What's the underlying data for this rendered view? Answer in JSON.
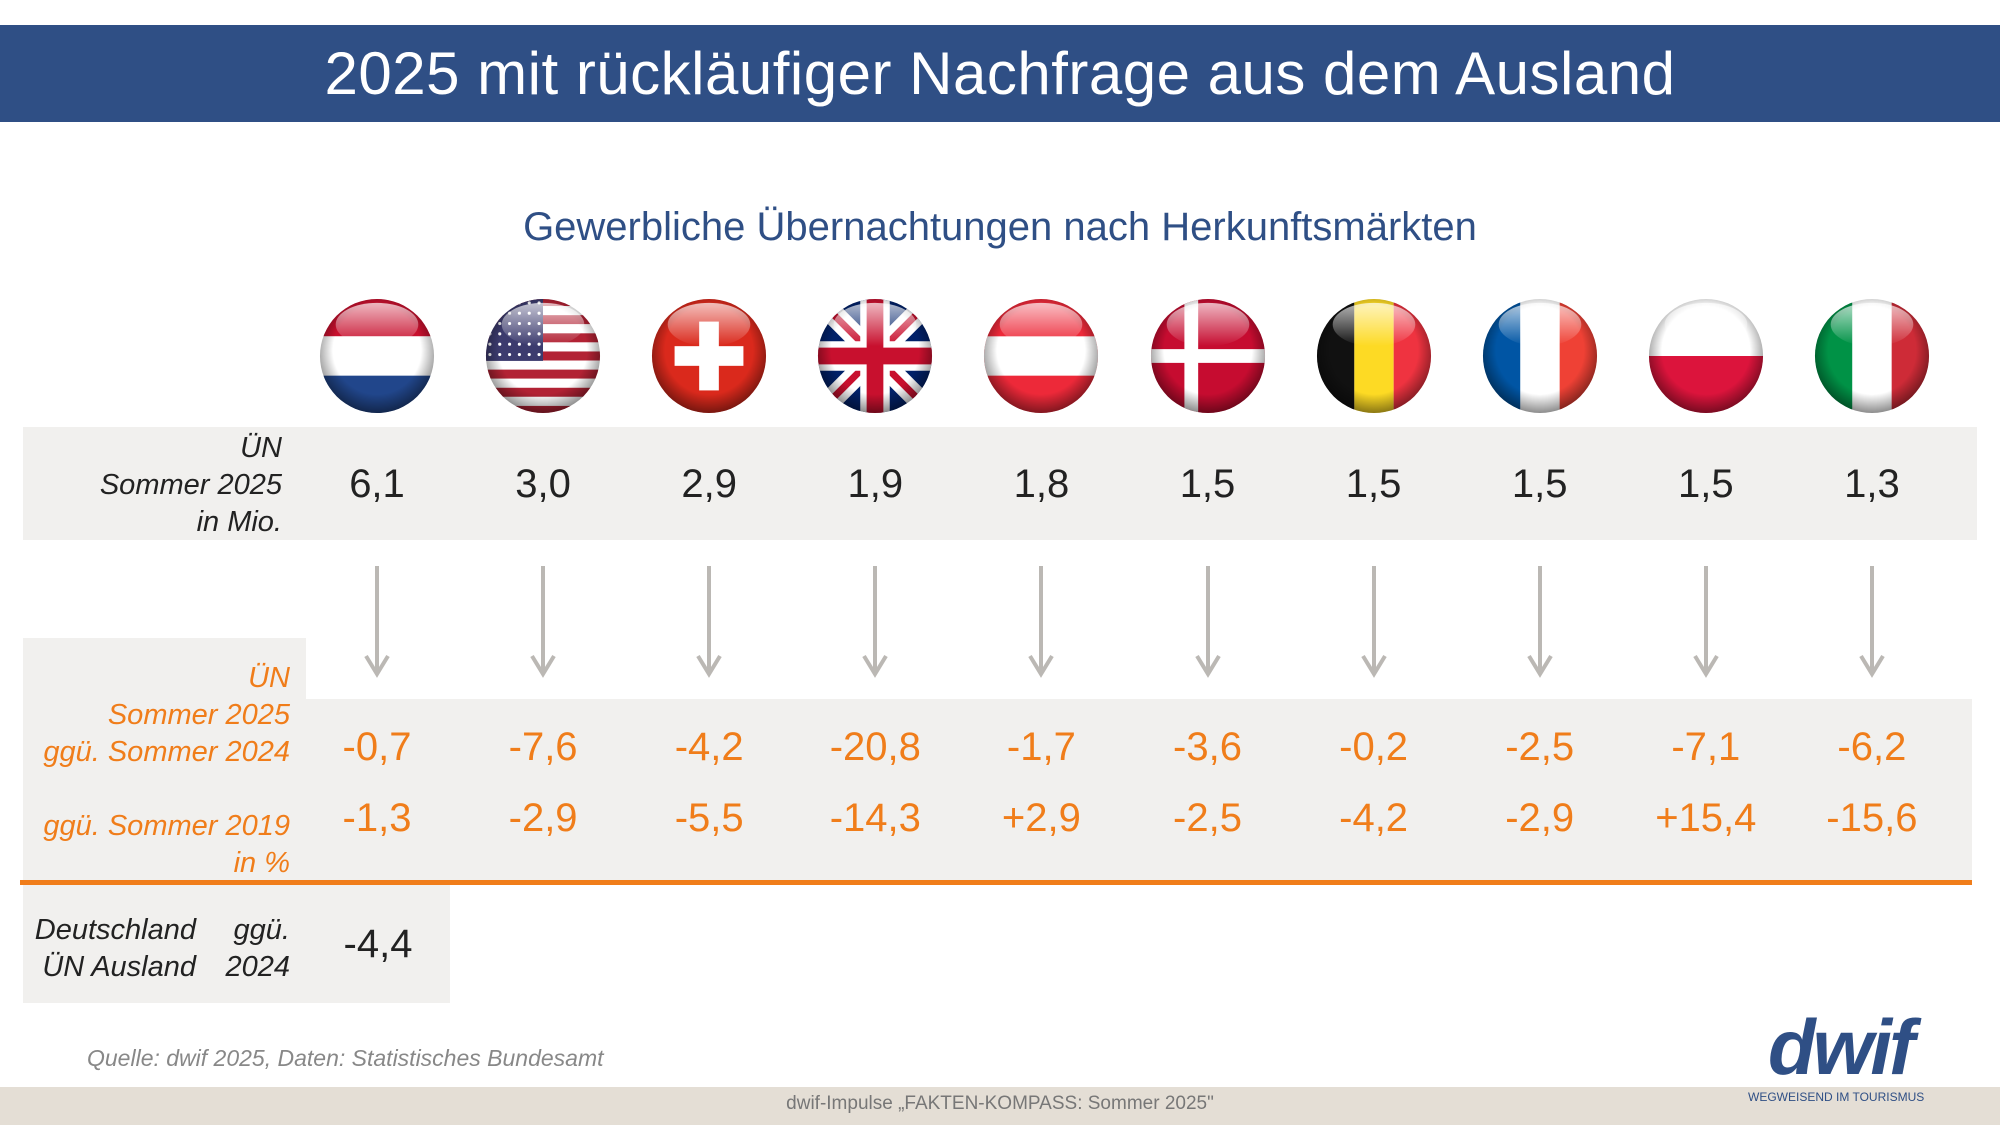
{
  "header": {
    "title": "2025 mit rückläufiger Nachfrage aus dem Ausland"
  },
  "subtitle": "Gewerbliche Übernachtungen nach Herkunftsmärkten",
  "row1_label": [
    "ÜN",
    "Sommer 2025",
    "in Mio."
  ],
  "row2_label": [
    "ÜN",
    "Sommer 2025",
    "ggü. Sommer 2024"
  ],
  "row3_label": [
    "ggü. Sommer 2019",
    "in %"
  ],
  "colors": {
    "brand": "#2f4f85",
    "accent": "#f07d1a",
    "band": "#f1f0ee",
    "arrow": "#bbb8b4"
  },
  "markets": [
    {
      "flag": "netherlands-flag",
      "un_mio": "6,1",
      "vs2024": "-0,7",
      "vs2019": "-1,3"
    },
    {
      "flag": "usa-flag",
      "un_mio": "3,0",
      "vs2024": "-7,6",
      "vs2019": "-2,9"
    },
    {
      "flag": "switzerland-flag",
      "un_mio": "2,9",
      "vs2024": "-4,2",
      "vs2019": "-5,5"
    },
    {
      "flag": "uk-flag",
      "un_mio": "1,9",
      "vs2024": "-20,8",
      "vs2019": "-14,3"
    },
    {
      "flag": "austria-flag",
      "un_mio": "1,8",
      "vs2024": "-1,7",
      "vs2019": "+2,9"
    },
    {
      "flag": "denmark-flag",
      "un_mio": "1,5",
      "vs2024": "-3,6",
      "vs2019": "-2,5"
    },
    {
      "flag": "belgium-flag",
      "un_mio": "1,5",
      "vs2024": "-0,2",
      "vs2019": "-4,2"
    },
    {
      "flag": "france-flag",
      "un_mio": "1,5",
      "vs2024": "-2,5",
      "vs2019": "-2,9"
    },
    {
      "flag": "poland-flag",
      "un_mio": "1,5",
      "vs2024": "-7,1",
      "vs2019": "+15,4"
    },
    {
      "flag": "italy-flag",
      "un_mio": "1,3",
      "vs2024": "-6,2",
      "vs2019": "-15,6"
    }
  ],
  "germany": {
    "label_left": [
      "Deutschland",
      "ÜN Ausland"
    ],
    "label_right": [
      "ggü.",
      "2024"
    ],
    "value": "-4,4"
  },
  "source": "Quelle: dwif 2025, Daten: Statistisches Bundesamt",
  "footer": "dwif-Impulse „FAKTEN-KOMPASS: Sommer 2025\"",
  "logo": {
    "word": "dwif",
    "tagline": "WEGWEISEND IM TOURISMUS"
  }
}
